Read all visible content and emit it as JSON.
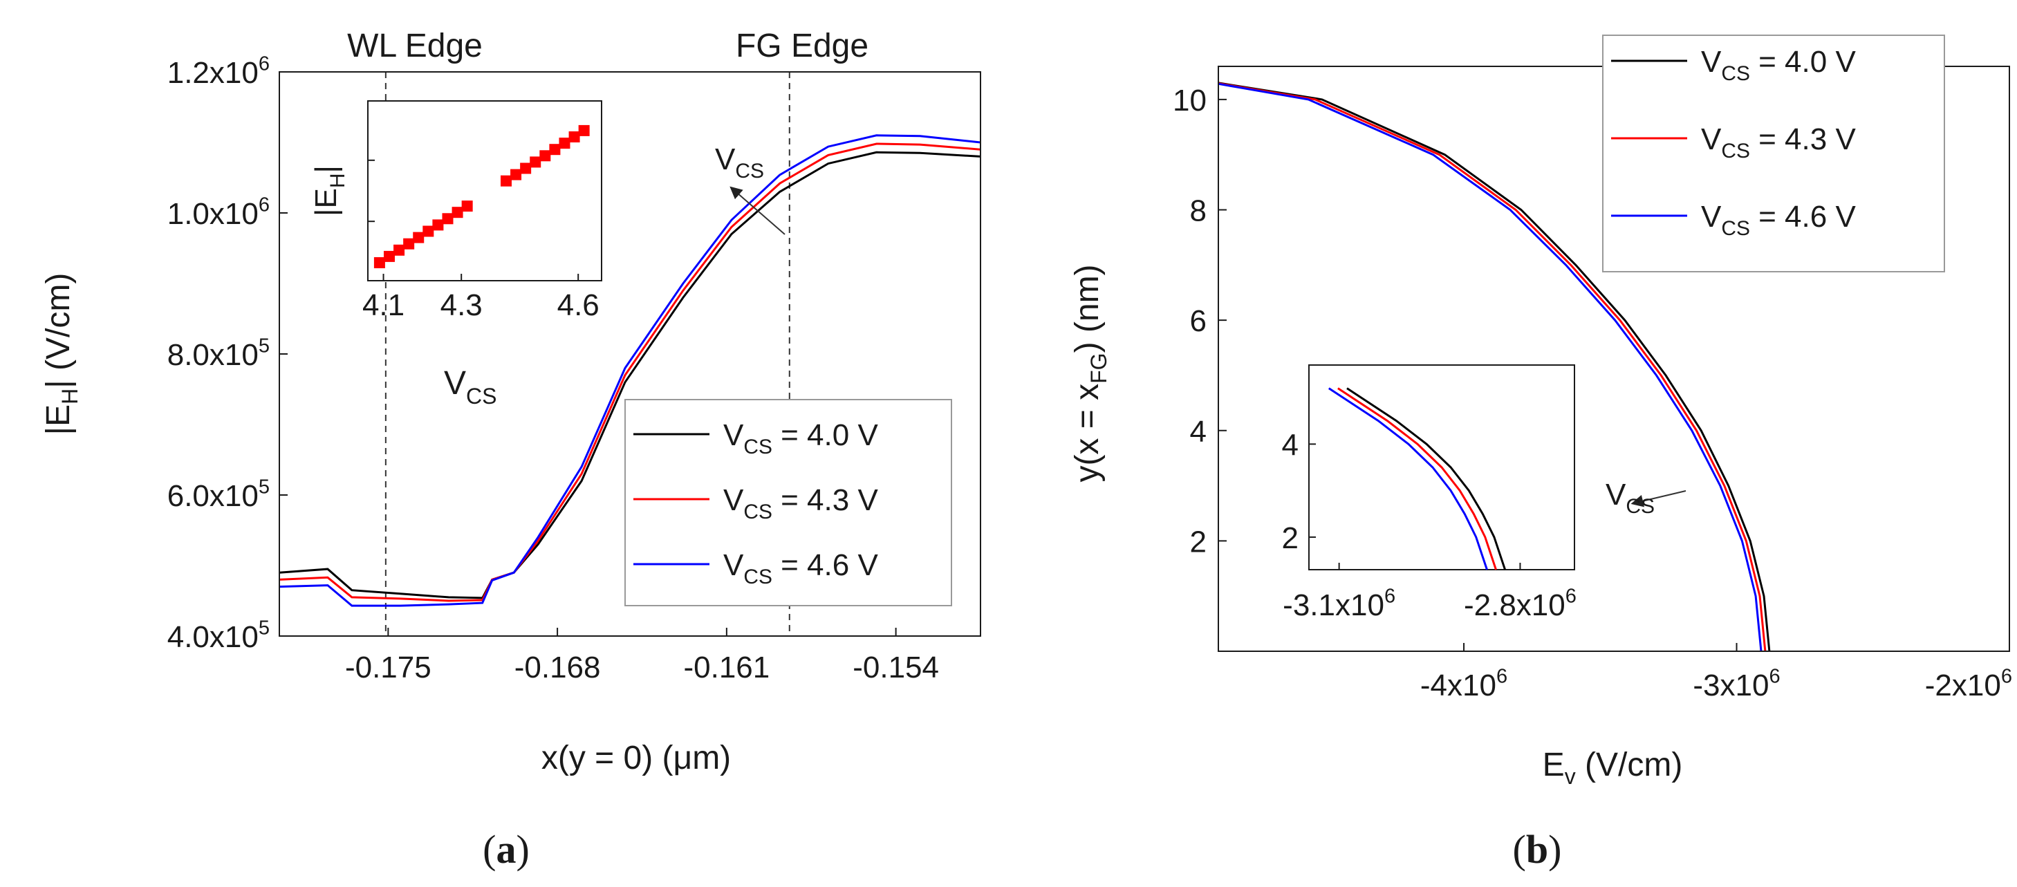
{
  "chart_data": [
    {
      "panel": "a",
      "type": "line",
      "caption": {
        "open": "(",
        "letter": "a",
        "close": ")"
      },
      "xlabel": "x(y = 0) (μm)",
      "ylabel": "|E_H| (V/cm)",
      "xlim": [
        -0.1795,
        -0.1505
      ],
      "ylim": [
        400000,
        1200000
      ],
      "xticks": [
        {
          "value": -0.175,
          "label": "-0.175"
        },
        {
          "value": -0.168,
          "label": "-0.168"
        },
        {
          "value": -0.161,
          "label": "-0.161"
        },
        {
          "value": -0.154,
          "label": "-0.154"
        }
      ],
      "yticks": [
        {
          "value": 400000,
          "mant": "4.0x10",
          "exp": "5"
        },
        {
          "value": 600000,
          "mant": "6.0x10",
          "exp": "5"
        },
        {
          "value": 800000,
          "mant": "8.0x10",
          "exp": "5"
        },
        {
          "value": 1000000,
          "mant": "1.0x10",
          "exp": "6"
        },
        {
          "value": 1200000,
          "mant": "1.2x10",
          "exp": "6"
        }
      ],
      "annotations": {
        "wl_edge": {
          "label": "WL Edge",
          "x": -0.1751
        },
        "fg_edge": {
          "label": "FG Edge",
          "x": -0.1584
        },
        "vcs_arrow_label": "V",
        "vcs_arrow_sub": "CS"
      },
      "x": [
        -0.1795,
        -0.1775,
        -0.1765,
        -0.1745,
        -0.1725,
        -0.1711,
        -0.1707,
        -0.1698,
        -0.1688,
        -0.167,
        -0.1652,
        -0.1628,
        -0.1608,
        -0.1588,
        -0.1568,
        -0.1548,
        -0.153,
        -0.1505
      ],
      "series": [
        {
          "name": "4.0 V",
          "color": "#000000",
          "values": [
            490000,
            495000,
            465000,
            460000,
            455000,
            454000,
            480000,
            490000,
            530000,
            620000,
            760000,
            880000,
            970000,
            1030000,
            1070000,
            1086000,
            1085000,
            1080000
          ]
        },
        {
          "name": "4.3 V",
          "color": "#ff0000",
          "values": [
            480000,
            483000,
            455000,
            453000,
            450000,
            451000,
            480000,
            490000,
            535000,
            630000,
            770000,
            890000,
            980000,
            1042000,
            1082000,
            1098000,
            1097000,
            1090000
          ]
        },
        {
          "name": "4.6 V",
          "color": "#0000ff",
          "values": [
            470000,
            472000,
            443000,
            443000,
            445000,
            447000,
            479000,
            490000,
            540000,
            640000,
            780000,
            900000,
            990000,
            1054000,
            1094000,
            1110000,
            1109000,
            1100000
          ]
        }
      ],
      "legend": {
        "placement": "lower-right",
        "entries": [
          {
            "name": "4.0 V",
            "color": "#000000",
            "pre": "V",
            "sub": "CS",
            "post": " = 4.0 V"
          },
          {
            "name": "4.3 V",
            "color": "#ff0000",
            "pre": "V",
            "sub": "CS",
            "post": " = 4.3 V"
          },
          {
            "name": "4.6 V",
            "color": "#0000ff",
            "pre": "V",
            "sub": "CS",
            "post": " = 4.6 V"
          }
        ]
      },
      "inset": {
        "type": "scatter",
        "ylabel": "|E_H|",
        "xlabel_main": "V",
        "xlabel_sub": "CS",
        "xlim": [
          4.06,
          4.66
        ],
        "ylim": [
          0,
          1
        ],
        "xticks": [
          {
            "value": 4.1,
            "label": "4.1"
          },
          {
            "value": 4.3,
            "label": "4.3"
          },
          {
            "value": 4.6,
            "label": "4.6"
          }
        ],
        "yticks": [
          0.33,
          0.67
        ],
        "color": "#ff0000",
        "x": [
          4.09,
          4.115,
          4.14,
          4.165,
          4.19,
          4.215,
          4.24,
          4.265,
          4.29,
          4.315,
          4.415,
          4.44,
          4.465,
          4.49,
          4.515,
          4.54,
          4.565,
          4.59,
          4.615
        ],
        "y": [
          0.1,
          0.135,
          0.17,
          0.205,
          0.24,
          0.275,
          0.31,
          0.345,
          0.38,
          0.415,
          0.555,
          0.59,
          0.625,
          0.66,
          0.695,
          0.73,
          0.765,
          0.8,
          0.835
        ]
      }
    },
    {
      "panel": "b",
      "type": "line",
      "caption": {
        "open": "(",
        "letter": "b",
        "close": ")"
      },
      "xlabel": "E_v (V/cm)",
      "ylabel": "y(x = x_FG) (nm)",
      "xlim": [
        -4900000,
        -2000000
      ],
      "ylim": [
        0,
        10.6
      ],
      "xticks": [
        {
          "value": -4000000,
          "mant": "-4x10",
          "exp": "6"
        },
        {
          "value": -3000000,
          "mant": "-3x10",
          "exp": "6"
        },
        {
          "value": -2000000,
          "mant": "-2x10",
          "exp": "6"
        }
      ],
      "yticks": [
        {
          "value": 2,
          "label": "2"
        },
        {
          "value": 4,
          "label": "4"
        },
        {
          "value": 6,
          "label": "6"
        },
        {
          "value": 8,
          "label": "8"
        },
        {
          "value": 10,
          "label": "10"
        }
      ],
      "annotations": {
        "vcs_arrow_label": "V",
        "vcs_arrow_sub": "CS"
      },
      "y": [
        0,
        1,
        2,
        3,
        4,
        5,
        6,
        7,
        8,
        9,
        10,
        10.3
      ],
      "series": [
        {
          "name": "4.0 V",
          "color": "#000000",
          "values": [
            -2880000,
            -2900000,
            -2950000,
            -3030000,
            -3130000,
            -3260000,
            -3410000,
            -3590000,
            -3790000,
            -4070000,
            -4520000,
            -4900000
          ]
        },
        {
          "name": "4.3 V",
          "color": "#ff0000",
          "values": [
            -2895000,
            -2915000,
            -2965000,
            -3045000,
            -3147000,
            -3277000,
            -3428000,
            -3608000,
            -3810000,
            -4090000,
            -4545000,
            -4910000
          ]
        },
        {
          "name": "4.6 V",
          "color": "#0000ff",
          "values": [
            -2910000,
            -2930000,
            -2980000,
            -3060000,
            -3164000,
            -3294000,
            -3446000,
            -3626000,
            -3830000,
            -4113000,
            -4570000,
            -4920000
          ]
        }
      ],
      "legend": {
        "placement": "top-right",
        "entries": [
          {
            "name": "4.0 V",
            "color": "#000000",
            "pre": "V",
            "sub": "CS",
            "post": " = 4.0 V"
          },
          {
            "name": "4.3 V",
            "color": "#ff0000",
            "pre": "V",
            "sub": "CS",
            "post": " = 4.3 V"
          },
          {
            "name": "4.6 V",
            "color": "#0000ff",
            "pre": "V",
            "sub": "CS",
            "post": " = 4.6 V"
          }
        ]
      },
      "inset": {
        "type": "line",
        "xlim": [
          -3150000,
          -2710000
        ],
        "ylim": [
          1.3,
          5.7
        ],
        "xticks": [
          {
            "value": -3100000,
            "mant": "-3.1x10",
            "exp": "6"
          },
          {
            "value": -2800000,
            "mant": "-2.8x10",
            "exp": "6"
          }
        ],
        "yticks": [
          {
            "value": 2,
            "label": "2"
          },
          {
            "value": 4,
            "label": "4"
          }
        ],
        "y": [
          1.3,
          2,
          2.5,
          3,
          3.5,
          4,
          4.5,
          5.2
        ],
        "series": [
          {
            "name": "4.0 V",
            "color": "#000000",
            "values": [
              -2825000,
              -2843000,
              -2862000,
              -2885000,
              -2915000,
              -2955000,
              -3005000,
              -3087000
            ]
          },
          {
            "name": "4.3 V",
            "color": "#ff0000",
            "values": [
              -2840000,
              -2858000,
              -2877000,
              -2900000,
              -2930000,
              -2970000,
              -3020000,
              -3102000
            ]
          },
          {
            "name": "4.6 V",
            "color": "#0000ff",
            "values": [
              -2855000,
              -2873000,
              -2892000,
              -2915000,
              -2945000,
              -2985000,
              -3035000,
              -3117000
            ]
          }
        ]
      }
    }
  ]
}
